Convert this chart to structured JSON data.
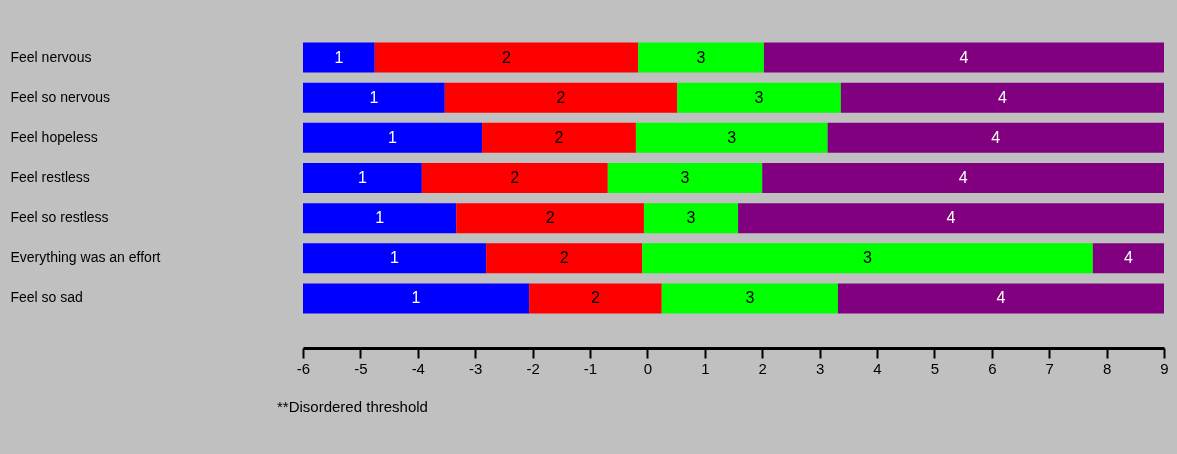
{
  "chart_data": {
    "type": "bar",
    "orientation": "horizontal",
    "categories": [
      "Feel nervous",
      "Feel so nervous",
      "Feel hopeless",
      "Feel restless",
      "Feel so restless",
      "Everything was an effort",
      "Feel so sad"
    ],
    "series": [
      {
        "name": "1",
        "color": "#0000ff",
        "base": [
          -6,
          -6,
          -6,
          -6,
          -6,
          -6,
          -6
        ],
        "values": [
          1.25,
          2.47,
          3.12,
          2.07,
          2.67,
          3.19,
          3.94
        ]
      },
      {
        "name": "2",
        "color": "#ff0000",
        "base": [
          -4.75,
          -3.53,
          -2.88,
          -3.93,
          -3.33,
          -2.81,
          -2.06
        ],
        "values": [
          4.59,
          4.05,
          2.68,
          3.24,
          3.27,
          2.72,
          2.31
        ]
      },
      {
        "name": "3",
        "color": "#00ff00",
        "base": [
          -0.16,
          0.52,
          -0.2,
          -0.69,
          -0.06,
          -0.09,
          0.25
        ],
        "values": [
          2.19,
          2.85,
          3.34,
          2.69,
          1.64,
          7.85,
          3.07
        ]
      },
      {
        "name": "4",
        "color": "#800080",
        "base": [
          2.03,
          3.37,
          3.14,
          2.0,
          1.58,
          7.76,
          3.32
        ],
        "values": [
          6.97,
          5.63,
          5.86,
          7.0,
          7.42,
          1.24,
          5.68
        ]
      }
    ],
    "xlim": [
      -6,
      9
    ],
    "xticks": [
      -6,
      -5,
      -4,
      -3,
      -2,
      -1,
      0,
      1,
      2,
      3,
      4,
      5,
      6,
      7,
      8,
      9
    ],
    "grid": false,
    "annotations": [
      "**Disordered threshold"
    ]
  }
}
